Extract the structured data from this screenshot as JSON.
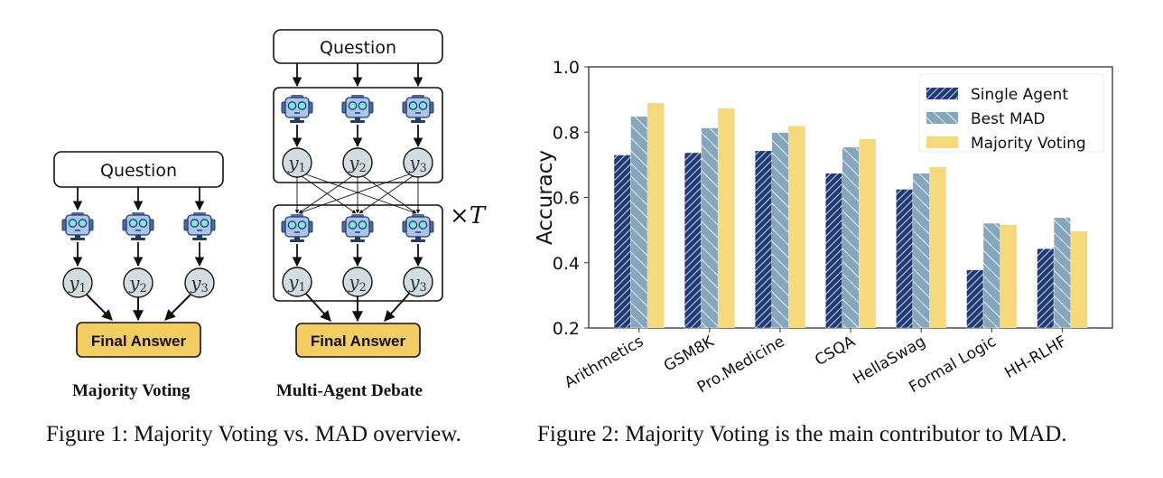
{
  "figure1": {
    "majority_voting": {
      "question_label": "Question",
      "answers": [
        "y1",
        "y2",
        "y3"
      ],
      "final_label": "Final Answer",
      "subtitle": "Majority Voting"
    },
    "mad": {
      "question_label": "Question",
      "answers": [
        "y1",
        "y2",
        "y3"
      ],
      "repeat_label": "×T",
      "final_label": "Final Answer",
      "subtitle": "Multi-Agent Debate"
    },
    "caption": "Figure 1: Majority Voting vs. MAD overview."
  },
  "figure2": {
    "caption": "Figure 2: Majority Voting is the main contributor to MAD."
  },
  "colors": {
    "single_agent": "#1f3a74",
    "best_mad": "#86a6bd",
    "majority_voting": "#f5d97a",
    "robot_fill": "#a9c4ef",
    "robot_eye": "#7fe8df",
    "answer_node": "#d2dde2",
    "final_box": "#f3cd62"
  },
  "chart_data": {
    "type": "bar",
    "title": "",
    "xlabel": "",
    "ylabel": "Accuracy",
    "ylim": [
      0.2,
      1.0
    ],
    "yticks": [
      "0.2",
      "0.4",
      "0.6",
      "0.8",
      "1.0"
    ],
    "categories": [
      "Arithmetics",
      "GSM8K",
      "Pro.Medicine",
      "CSQA",
      "HellaSwag",
      "Formal Logic",
      "HH-RLHF"
    ],
    "series": [
      {
        "name": "Single Agent",
        "values": [
          0.73,
          0.737,
          0.743,
          0.674,
          0.625,
          0.378,
          0.443
        ],
        "hatch": "forward"
      },
      {
        "name": "Best MAD",
        "values": [
          0.848,
          0.813,
          0.799,
          0.754,
          0.674,
          0.521,
          0.538
        ],
        "hatch": "backward"
      },
      {
        "name": "Majority Voting",
        "values": [
          0.889,
          0.873,
          0.819,
          0.779,
          0.693,
          0.516,
          0.496
        ],
        "hatch": "none"
      }
    ],
    "legend_position": "top-right",
    "grid": false
  }
}
